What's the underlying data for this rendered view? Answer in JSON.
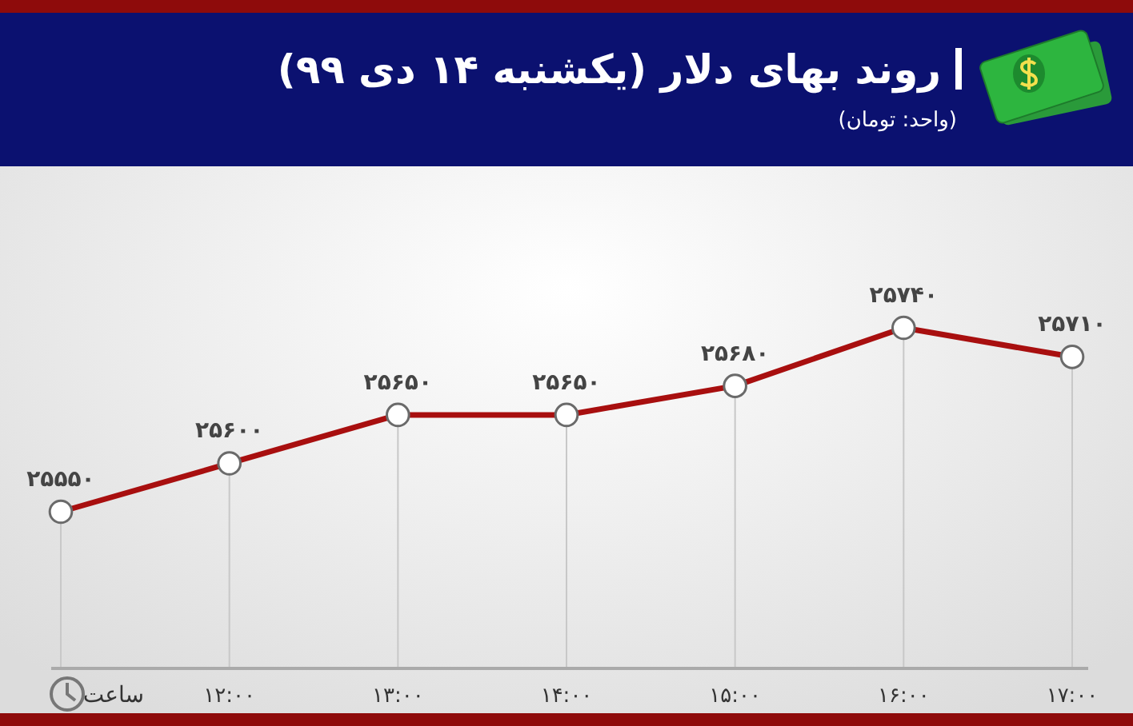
{
  "chart_data": {
    "type": "line",
    "title": "روند بهای دلار (یکشنبه ۱۴ دی ۹۹)",
    "subtitle": "(واحد: تومان)",
    "xlabel": "ساعت",
    "categories": [
      null,
      "۱۲:۰۰",
      "۱۳:۰۰",
      "۱۴:۰۰",
      "۱۵:۰۰",
      "۱۶:۰۰",
      "۱۷:۰۰"
    ],
    "series": [
      {
        "color": "#a80f0f",
        "values": [
          25550,
          25600,
          25650,
          25650,
          25680,
          25740,
          25710
        ],
        "value_labels": [
          "۲۵۵۵۰",
          "۲۵۶۰۰",
          "۲۵۶۵۰",
          "۲۵۶۵۰",
          "۲۵۶۸۰",
          "۲۵۷۴۰",
          "۲۵۷۱۰"
        ]
      }
    ],
    "marker": "circle",
    "grid": "x"
  }
}
